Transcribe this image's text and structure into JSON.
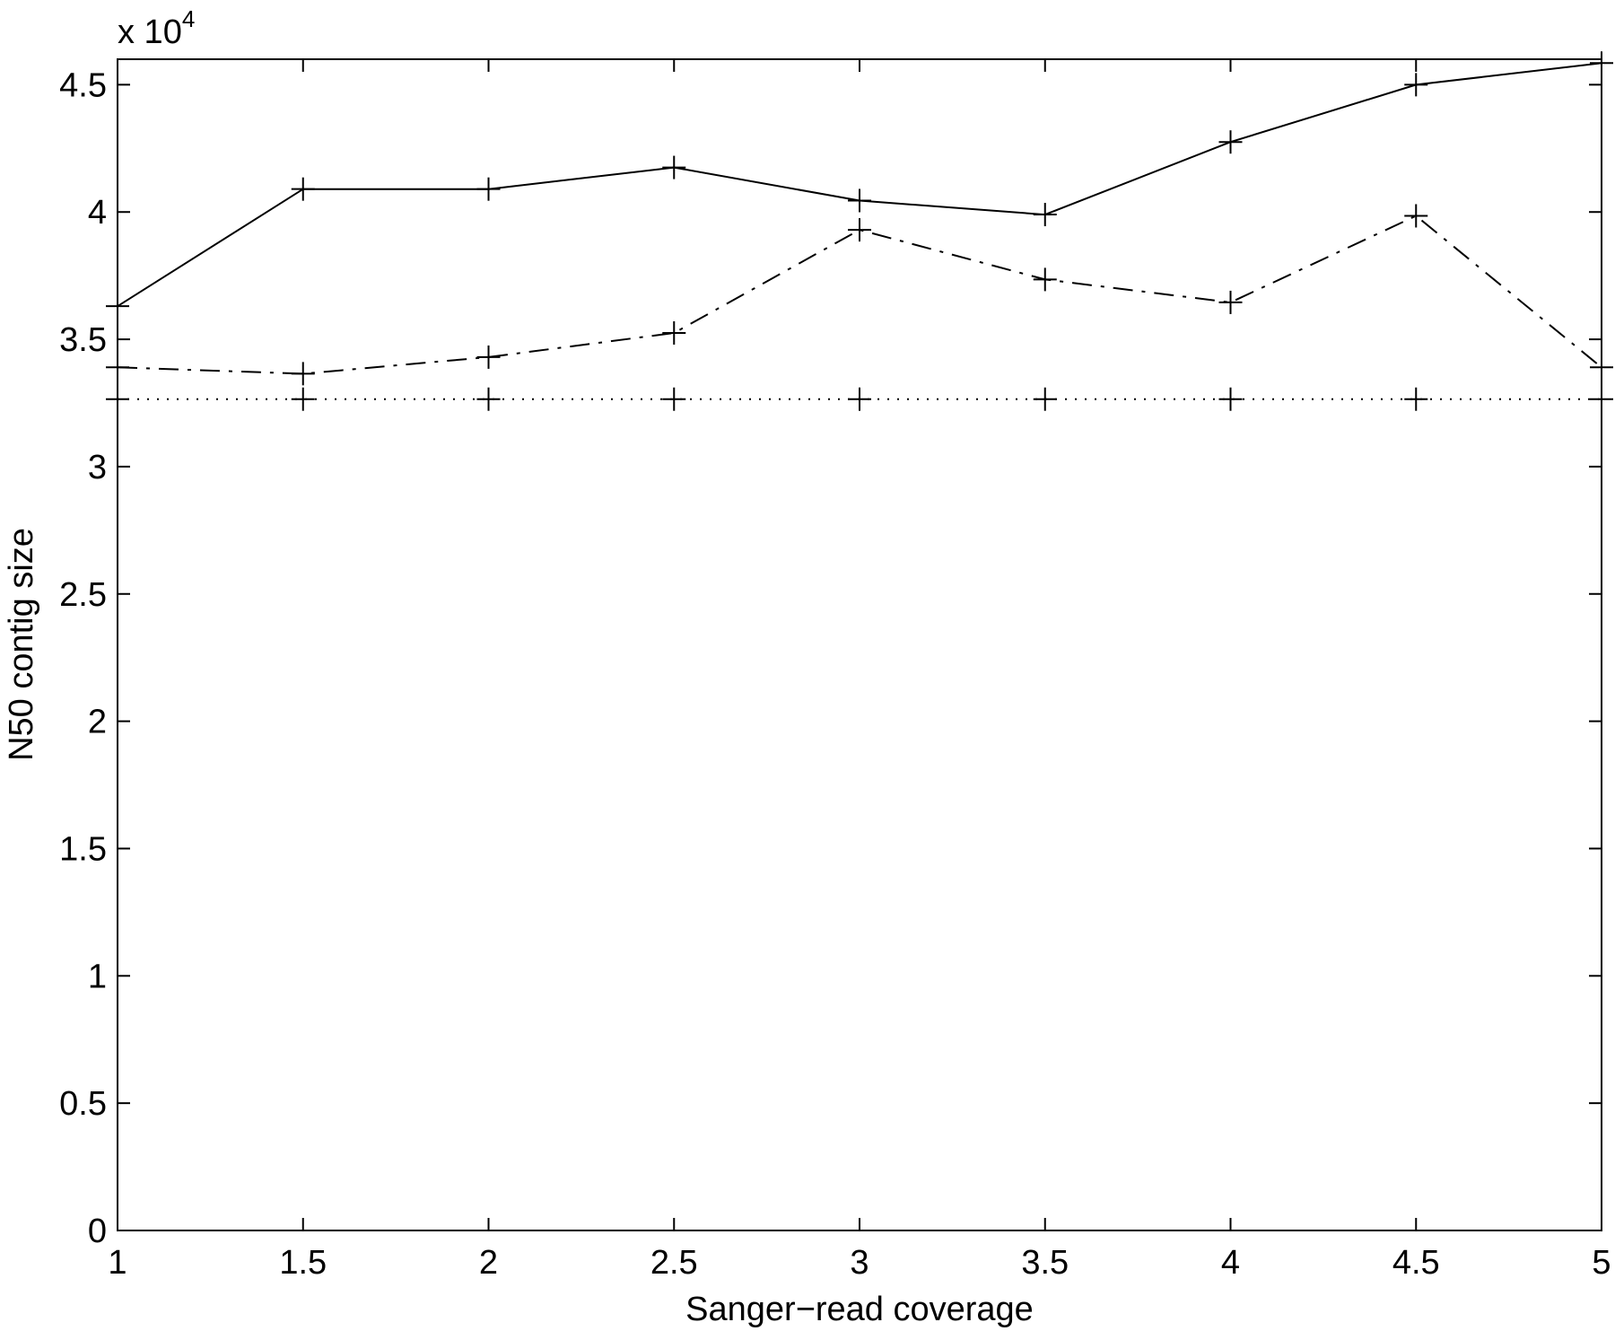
{
  "chart_data": {
    "type": "line",
    "xlabel": "Sanger−read coverage",
    "ylabel": "N50 contig size",
    "y_multiplier": {
      "base": "x 10",
      "exponent": "4"
    },
    "xlim": [
      1,
      5
    ],
    "ylim": [
      0,
      4.6
    ],
    "xticks": [
      "1",
      "1.5",
      "2",
      "2.5",
      "3",
      "3.5",
      "4",
      "4.5",
      "5"
    ],
    "yticks": [
      "0",
      "0.5",
      "1",
      "1.5",
      "2",
      "2.5",
      "3",
      "3.5",
      "4",
      "4.5"
    ],
    "grid": false,
    "marker": "+",
    "x": [
      1,
      1.5,
      2,
      2.5,
      3,
      3.5,
      4,
      4.5,
      5
    ],
    "series": [
      {
        "style": "solid",
        "values": [
          3.63,
          4.09,
          4.09,
          4.175,
          4.045,
          3.99,
          4.275,
          4.5,
          4.585
        ]
      },
      {
        "style": "dashdot",
        "values": [
          3.39,
          3.365,
          3.43,
          3.525,
          3.93,
          3.735,
          3.645,
          3.985,
          3.39
        ]
      },
      {
        "style": "dotted",
        "values": [
          3.265,
          3.265,
          3.265,
          3.265,
          3.265,
          3.265,
          3.265,
          3.265,
          3.265
        ]
      }
    ]
  }
}
